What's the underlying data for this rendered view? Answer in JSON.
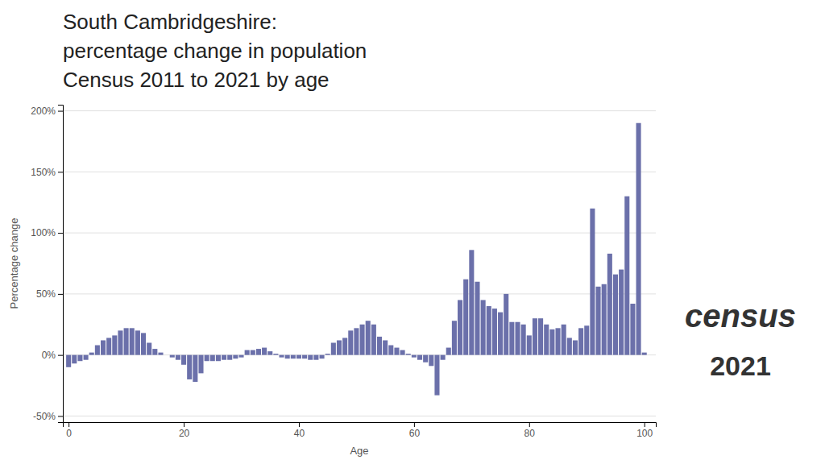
{
  "chart_data": {
    "type": "bar",
    "title": [
      "South Cambridgeshire:",
      "percentage change in population",
      "Census 2011 to 2021 by age"
    ],
    "x_label": "Age",
    "y_label": "Percentage change",
    "annotations": [
      "census",
      "2021"
    ],
    "color": "#6b70aa",
    "grid": true,
    "x": [
      0,
      1,
      2,
      3,
      4,
      5,
      6,
      7,
      8,
      9,
      10,
      11,
      12,
      13,
      14,
      15,
      16,
      17,
      18,
      19,
      20,
      21,
      22,
      23,
      24,
      25,
      26,
      27,
      28,
      29,
      30,
      31,
      32,
      33,
      34,
      35,
      36,
      37,
      38,
      39,
      40,
      41,
      42,
      43,
      44,
      45,
      46,
      47,
      48,
      49,
      50,
      51,
      52,
      53,
      54,
      55,
      56,
      57,
      58,
      59,
      60,
      61,
      62,
      63,
      64,
      65,
      66,
      67,
      68,
      69,
      70,
      71,
      72,
      73,
      74,
      75,
      76,
      77,
      78,
      79,
      80,
      81,
      82,
      83,
      84,
      85,
      86,
      87,
      88,
      89,
      90,
      91,
      92,
      93,
      94,
      95,
      96,
      97,
      98,
      99,
      100
    ],
    "values": [
      -0.1,
      -0.07,
      -0.05,
      -0.04,
      0.02,
      0.08,
      0.12,
      0.14,
      0.16,
      0.2,
      0.22,
      0.22,
      0.2,
      0.18,
      0.1,
      0.05,
      0.02,
      0.0,
      -0.02,
      -0.04,
      -0.08,
      -0.2,
      -0.22,
      -0.15,
      -0.05,
      -0.05,
      -0.05,
      -0.04,
      -0.04,
      -0.03,
      -0.02,
      0.04,
      0.04,
      0.05,
      0.06,
      0.03,
      0.01,
      -0.02,
      -0.03,
      -0.03,
      -0.03,
      -0.03,
      -0.04,
      -0.04,
      -0.03,
      0.01,
      0.1,
      0.12,
      0.14,
      0.2,
      0.22,
      0.25,
      0.28,
      0.25,
      0.15,
      0.12,
      0.08,
      0.06,
      0.04,
      0.01,
      -0.02,
      -0.04,
      -0.06,
      -0.09,
      -0.33,
      -0.04,
      0.06,
      0.28,
      0.45,
      0.62,
      0.86,
      0.6,
      0.45,
      0.4,
      0.38,
      0.35,
      0.5,
      0.27,
      0.27,
      0.25,
      0.16,
      0.3,
      0.3,
      0.25,
      0.21,
      0.22,
      0.25,
      0.14,
      0.12,
      0.22,
      0.24,
      1.2,
      0.56,
      0.58,
      0.83,
      0.66,
      0.7,
      1.3,
      0.42,
      1.9,
      0.02
    ],
    "xlim": [
      -1,
      102
    ],
    "xticks": [
      0,
      20,
      40,
      60,
      80,
      100
    ],
    "ylim": [
      -0.55,
      2.05
    ],
    "yticks": [
      {
        "value": -0.5,
        "label": "-50%"
      },
      {
        "value": 0.0,
        "label": "0%"
      },
      {
        "value": 0.5,
        "label": "50%"
      },
      {
        "value": 1.0,
        "label": "100%"
      },
      {
        "value": 1.5,
        "label": "150%"
      },
      {
        "value": 2.0,
        "label": "200%"
      }
    ]
  }
}
